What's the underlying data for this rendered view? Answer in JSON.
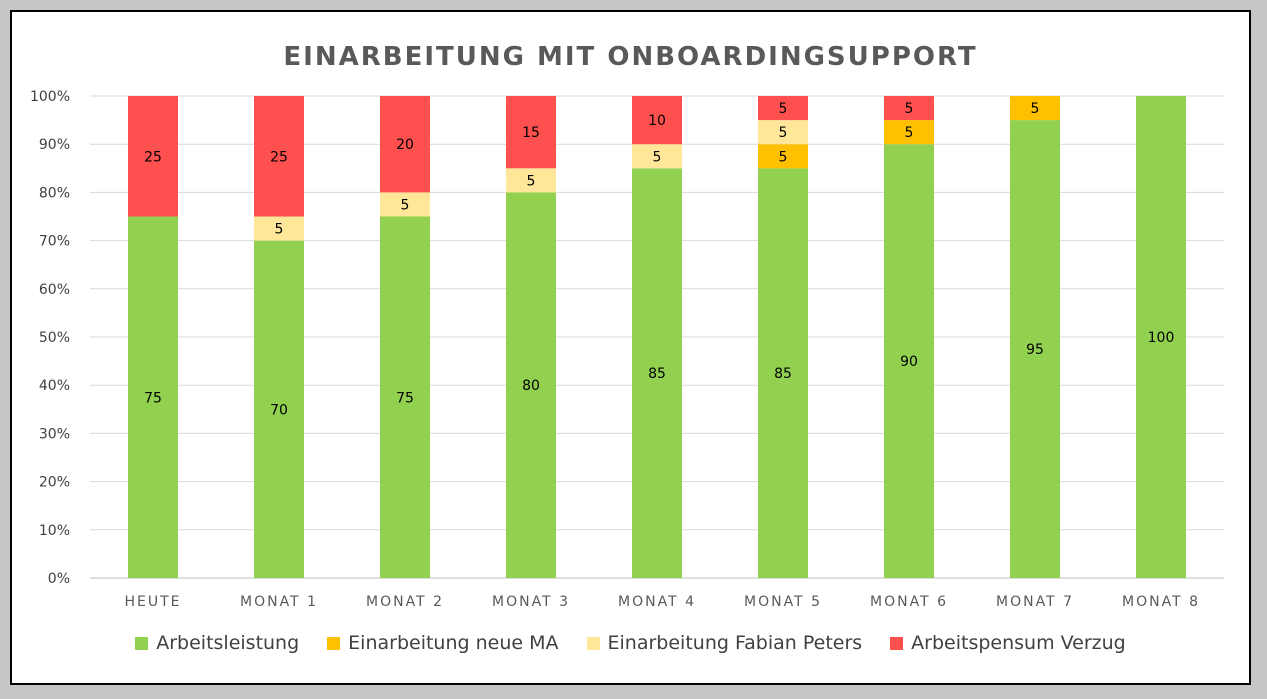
{
  "chart_data": {
    "type": "bar",
    "stacked": true,
    "title": "EINARBEITUNG MIT ONBOARDINGSUPPORT",
    "xlabel": "",
    "ylabel": "",
    "ylim": [
      0,
      100
    ],
    "y_ticks": [
      "0%",
      "10%",
      "20%",
      "30%",
      "40%",
      "50%",
      "60%",
      "70%",
      "80%",
      "90%",
      "100%"
    ],
    "grid": true,
    "legend_position": "bottom",
    "categories": [
      "HEUTE",
      "MONAT 1",
      "MONAT 2",
      "MONAT 3",
      "MONAT 4",
      "MONAT 5",
      "MONAT 6",
      "MONAT 7",
      "MONAT 8"
    ],
    "series": [
      {
        "name": "Arbeitsleistung",
        "color": "#92d050",
        "values": [
          75,
          70,
          75,
          80,
          85,
          85,
          90,
          95,
          100
        ]
      },
      {
        "name": "Einarbeitung neue MA",
        "color": "#ffc000",
        "values": [
          0,
          0,
          0,
          0,
          0,
          5,
          5,
          5,
          0
        ]
      },
      {
        "name": "Einarbeitung Fabian Peters",
        "color": "#ffe699",
        "values": [
          0,
          5,
          5,
          5,
          5,
          5,
          0,
          0,
          0
        ]
      },
      {
        "name": "Arbeitspensum Verzug",
        "color": "#ff5050",
        "values": [
          25,
          25,
          20,
          15,
          10,
          5,
          5,
          0,
          0
        ]
      }
    ]
  }
}
